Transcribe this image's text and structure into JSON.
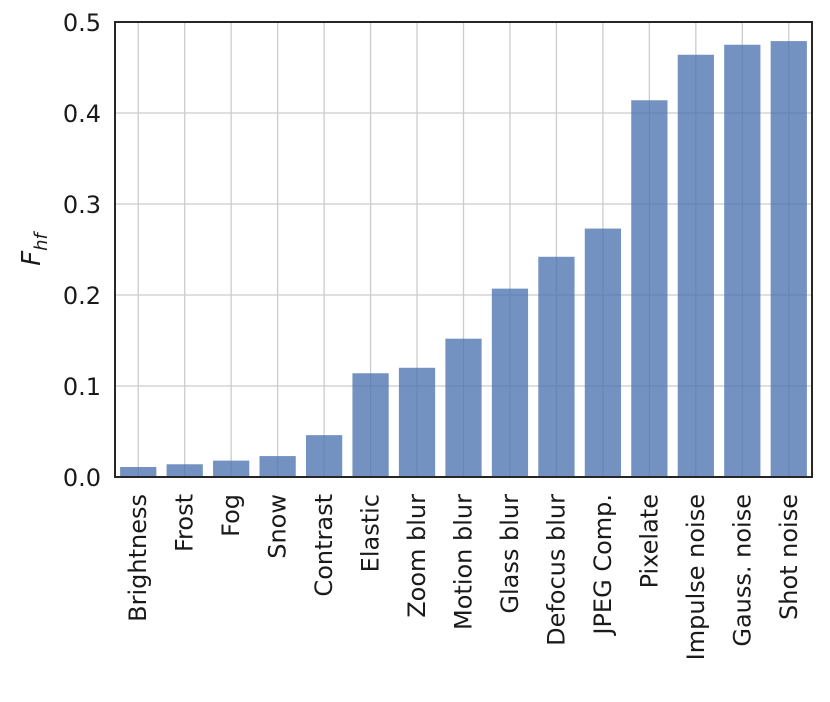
{
  "chart_data": {
    "type": "bar",
    "title": "",
    "xlabel": "",
    "ylabel": "F",
    "ylabel_subscript": "hf",
    "categories": [
      "Brightness",
      "Frost",
      "Fog",
      "Snow",
      "Contrast",
      "Elastic",
      "Zoom blur",
      "Motion blur",
      "Glass blur",
      "Defocus blur",
      "JPEG Comp.",
      "Pixelate",
      "Impulse noise",
      "Gauss. noise",
      "Shot noise"
    ],
    "values": [
      0.011,
      0.014,
      0.018,
      0.023,
      0.046,
      0.114,
      0.12,
      0.152,
      0.207,
      0.242,
      0.273,
      0.414,
      0.464,
      0.475,
      0.479
    ],
    "ylim": [
      0,
      0.5
    ],
    "yticks": [
      "0.0",
      "0.1",
      "0.2",
      "0.3",
      "0.4",
      "0.5"
    ],
    "grid": true,
    "bar_color": "#4c72b0"
  }
}
